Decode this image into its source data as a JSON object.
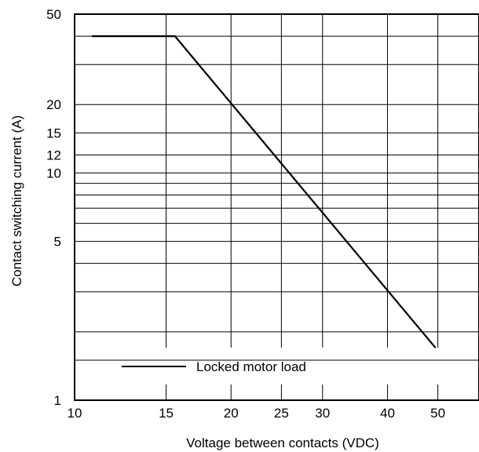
{
  "chart_data": {
    "type": "line",
    "title": "",
    "xlabel": "Voltage between contacts (VDC)",
    "ylabel": "Contact switching current (A)",
    "x_scale": "log",
    "y_scale": "log",
    "xlim": [
      10,
      60
    ],
    "ylim": [
      1,
      50
    ],
    "grid": true,
    "legend_position": "bottom-left",
    "x_ticks": [
      {
        "value": 10,
        "label": "10"
      },
      {
        "value": 15,
        "label": "15"
      },
      {
        "value": 20,
        "label": "20"
      },
      {
        "value": 25,
        "label": "25"
      },
      {
        "value": 30,
        "label": "30"
      },
      {
        "value": 40,
        "label": "40"
      },
      {
        "value": 50,
        "label": "50"
      }
    ],
    "y_ticks": [
      {
        "value": 1,
        "label": "1"
      },
      {
        "value": 5,
        "label": "5"
      },
      {
        "value": 10,
        "label": "10"
      },
      {
        "value": 12,
        "label": "12"
      },
      {
        "value": 15,
        "label": "15"
      },
      {
        "value": 20,
        "label": "20"
      },
      {
        "value": 50,
        "label": "50"
      }
    ],
    "x_grid": [
      15,
      20,
      25,
      30,
      40,
      50
    ],
    "x_minor_ticks": [
      15,
      20,
      25,
      30,
      40,
      50
    ],
    "y_grid": [
      1.5,
      2,
      3,
      4,
      5,
      6,
      7,
      8,
      9,
      10,
      12,
      15,
      20,
      30,
      40
    ],
    "series": [
      {
        "name": "Locked motor load",
        "color": "#000000",
        "points": [
          {
            "x": 10.8,
            "y": 40
          },
          {
            "x": 15.6,
            "y": 40
          },
          {
            "x": 49.5,
            "y": 1.7
          }
        ]
      }
    ]
  }
}
